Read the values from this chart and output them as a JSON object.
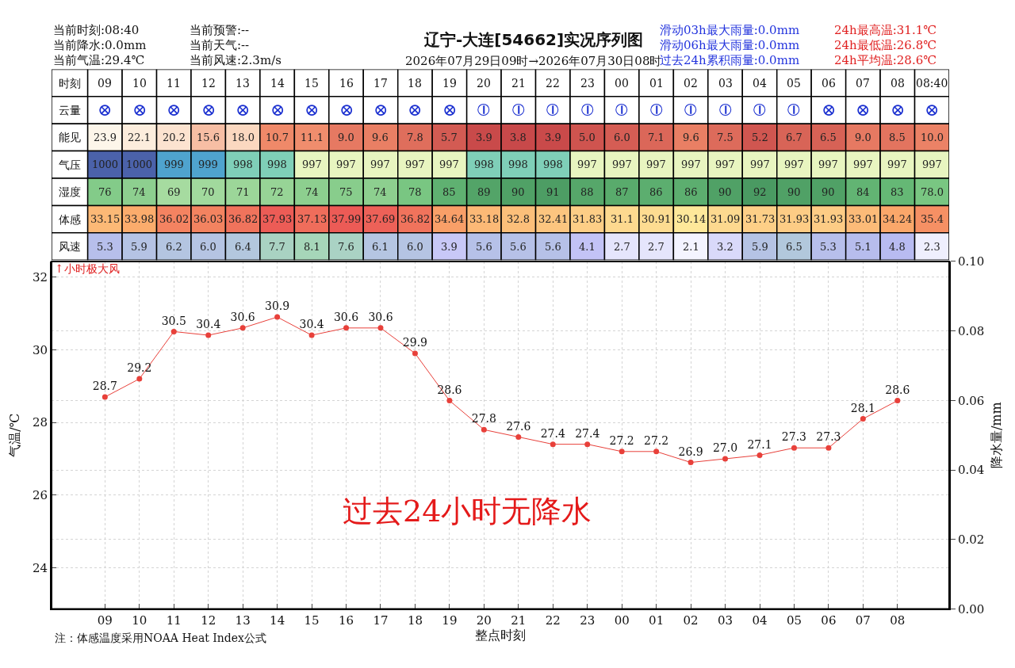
{
  "chart_data": [
    {
      "type": "heatmap",
      "title": "辽宁-大连[54662]实况序列图",
      "subtitle": "2026年07月29日09时→2026年07月30日08时",
      "xlabel": "时刻",
      "annotations": [
        "当前时刻:08:40",
        "当前降水:0.0mm",
        "当前气温:29.4℃",
        "当前预警:--",
        "当前天气:--",
        "当前风速:2.3m/s",
        "滑动03h最大雨量:0.0mm",
        "滑动06h最大雨量:0.0mm",
        "过去24h累积雨量:0.0mm",
        "24h最高温:31.1℃",
        "24h最低温:26.8℃",
        "24h平均温:28.6℃"
      ],
      "categories": [
        "09",
        "10",
        "11",
        "12",
        "13",
        "14",
        "15",
        "16",
        "17",
        "18",
        "19",
        "20",
        "21",
        "22",
        "23",
        "00",
        "01",
        "02",
        "03",
        "04",
        "05",
        "06",
        "07",
        "08",
        "08:40"
      ],
      "y_categories": [
        "云量",
        "能见",
        "气压",
        "湿度",
        "体感",
        "风速"
      ],
      "cells": [
        [
          null,
          null,
          null,
          null,
          null,
          null,
          null,
          null,
          null,
          null,
          null,
          null,
          null,
          null,
          null,
          null,
          null,
          null,
          null,
          null,
          null,
          null,
          null,
          null,
          null
        ],
        [
          23.9,
          22.1,
          20.2,
          15.6,
          18.0,
          10.7,
          11.1,
          9.0,
          9.6,
          7.8,
          5.7,
          3.9,
          3.8,
          3.9,
          5.0,
          6.0,
          7.1,
          9.6,
          7.5,
          5.2,
          6.7,
          6.5,
          9.0,
          8.5,
          10.0
        ],
        [
          1000,
          1000,
          999,
          999,
          998,
          998,
          997,
          997,
          997,
          997,
          997,
          998,
          998,
          998,
          997,
          997,
          997,
          997,
          997,
          997,
          997,
          997,
          997,
          997,
          997
        ],
        [
          76,
          74,
          69,
          70,
          71,
          72,
          74,
          75,
          74,
          78,
          85,
          89,
          90,
          91,
          88,
          87,
          86,
          86,
          90,
          92,
          90,
          90,
          84,
          83,
          78.0
        ],
        [
          33.15,
          33.98,
          36.02,
          36.03,
          36.82,
          37.93,
          37.13,
          37.99,
          37.69,
          36.82,
          34.64,
          33.18,
          32.8,
          32.41,
          31.83,
          31.1,
          30.91,
          30.14,
          31.09,
          31.73,
          31.93,
          31.93,
          33.01,
          34.24,
          35.4
        ],
        [
          5.3,
          5.9,
          6.2,
          6.0,
          6.4,
          7.7,
          8.1,
          7.6,
          6.1,
          6.0,
          3.9,
          5.6,
          5.6,
          5.6,
          4.1,
          2.7,
          2.7,
          2.1,
          3.2,
          5.9,
          6.5,
          5.3,
          5.1,
          4.8,
          2.3
        ]
      ],
      "cell_labels": [
        [
          "⊗",
          "⊗",
          "⊗",
          "⊗",
          "⊗",
          "⊗",
          "⊗",
          "⊗",
          "⊗",
          "⊗",
          "⊗",
          "⦶",
          "⦶",
          "⦶",
          "⦶",
          "⦶",
          "⦶",
          "⦶",
          "⦶",
          "⦶",
          "⦶",
          "⊗",
          "⊗",
          "⊗",
          "⊗"
        ],
        [
          "23.9",
          "22.1",
          "20.2",
          "15.6",
          "18.0",
          "10.7",
          "11.1",
          "9.0",
          "9.6",
          "7.8",
          "5.7",
          "3.9",
          "3.8",
          "3.9",
          "5.0",
          "6.0",
          "7.1",
          "9.6",
          "7.5",
          "5.2",
          "6.7",
          "6.5",
          "9.0",
          "8.5",
          "10.0"
        ],
        [
          "1000",
          "1000",
          "999",
          "999",
          "998",
          "998",
          "997",
          "997",
          "997",
          "997",
          "997",
          "998",
          "998",
          "998",
          "997",
          "997",
          "997",
          "997",
          "997",
          "997",
          "997",
          "997",
          "997",
          "997",
          "997"
        ],
        [
          "76",
          "74",
          "69",
          "70",
          "71",
          "72",
          "74",
          "75",
          "74",
          "78",
          "85",
          "89",
          "90",
          "91",
          "88",
          "87",
          "86",
          "86",
          "90",
          "92",
          "90",
          "90",
          "84",
          "83",
          "78.0"
        ],
        [
          "33.15",
          "33.98",
          "36.02",
          "36.03",
          "36.82",
          "37.93",
          "37.13",
          "37.99",
          "37.69",
          "36.82",
          "34.64",
          "33.18",
          "32.8",
          "32.41",
          "31.83",
          "31.1",
          "30.91",
          "30.14",
          "31.09",
          "31.73",
          "31.93",
          "31.93",
          "33.01",
          "34.24",
          "35.4"
        ],
        [
          "5.3",
          "5.9",
          "6.2",
          "6.0",
          "6.4",
          "7.7",
          "8.1",
          "7.6",
          "6.1",
          "6.0",
          "3.9",
          "5.6",
          "5.6",
          "5.6",
          "4.1",
          "2.7",
          "2.7",
          "2.1",
          "3.2",
          "5.9",
          "6.5",
          "5.3",
          "5.1",
          "4.8",
          "2.3"
        ]
      ]
    },
    {
      "type": "line",
      "xlabel": "整点时刻",
      "ylabel": "气温/℃",
      "y2label": "降水量/mm",
      "categories": [
        "09",
        "10",
        "11",
        "12",
        "13",
        "14",
        "15",
        "16",
        "17",
        "18",
        "19",
        "20",
        "21",
        "22",
        "23",
        "00",
        "01",
        "02",
        "03",
        "04",
        "05",
        "06",
        "07",
        "08"
      ],
      "values": [
        28.7,
        29.2,
        30.5,
        30.4,
        30.6,
        30.9,
        30.4,
        30.6,
        30.6,
        29.9,
        28.6,
        27.8,
        27.6,
        27.4,
        27.4,
        27.2,
        27.2,
        26.9,
        27.0,
        27.1,
        27.3,
        27.3,
        28.1,
        28.6
      ],
      "value_labels": [
        "28.7",
        "29.2",
        "30.5",
        "30.4",
        "30.6",
        "30.9",
        "30.4",
        "30.6",
        "30.6",
        "29.9",
        "28.6",
        "27.8",
        "27.6",
        "27.4",
        "27.4",
        "27.2",
        "27.2",
        "26.9",
        "27.0",
        "27.1",
        "27.3",
        "27.3",
        "28.1",
        "28.6"
      ],
      "color": "#e8403a",
      "marker": "circle",
      "line_style": "solid",
      "grid": true,
      "ylim": [
        22.87,
        32.43
      ],
      "yticks": [
        24,
        26,
        28,
        30,
        32
      ],
      "y2lim": [
        0,
        0.1
      ],
      "y2ticks": [
        {
          "value": 0,
          "label": "0.00"
        },
        {
          "value": 0.02,
          "label": "0.02"
        },
        {
          "value": 0.04,
          "label": "0.04"
        },
        {
          "value": 0.06,
          "label": "0.06"
        },
        {
          "value": 0.08,
          "label": "0.08"
        },
        {
          "value": 0.1,
          "label": "0.10"
        }
      ],
      "annotations": [
        "↑小时极大风",
        "过去24小时无降水",
        "注：体感温度采用NOAA Heat Index公式"
      ]
    }
  ]
}
